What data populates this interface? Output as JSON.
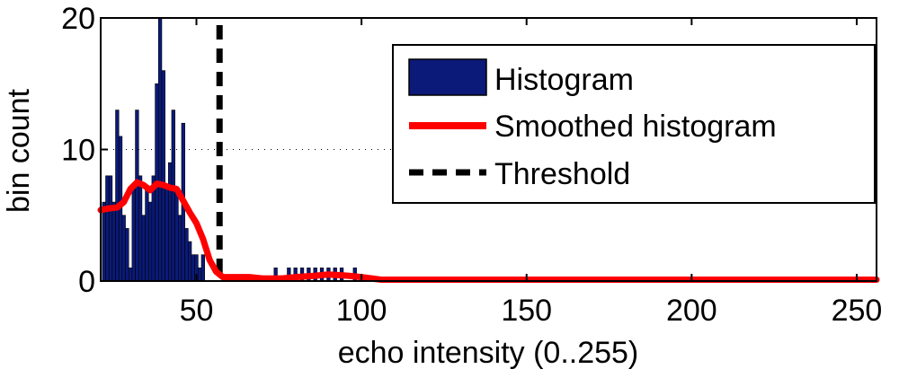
{
  "chart_data": {
    "type": "bar",
    "xlabel": "echo intensity (0..255)",
    "ylabel": "bin count",
    "xlim": [
      21,
      256
    ],
    "ylim": [
      0,
      20
    ],
    "xticks": [
      50,
      100,
      150,
      200,
      250
    ],
    "yticks": [
      0,
      10,
      20
    ],
    "grid": "y-dotted",
    "legend_position": "top-right",
    "series": [
      {
        "name": "Histogram",
        "kind": "bar",
        "color": "#0b1a78",
        "x": [
          22,
          23,
          24,
          25,
          26,
          27,
          28,
          29,
          30,
          31,
          32,
          33,
          34,
          35,
          36,
          37,
          38,
          39,
          40,
          41,
          42,
          43,
          44,
          45,
          46,
          47,
          48,
          49,
          50,
          51,
          52,
          53,
          54,
          55,
          66,
          68,
          74,
          78,
          80,
          82,
          84,
          86,
          88,
          90,
          92,
          94,
          98
        ],
        "values": [
          6,
          8,
          8,
          6,
          13,
          11,
          5,
          4,
          1,
          7,
          13,
          8,
          5,
          7,
          6,
          8,
          15,
          20,
          16,
          7,
          9,
          13,
          7,
          5,
          12,
          4,
          3,
          2,
          2,
          1,
          2,
          0,
          0,
          0,
          0,
          0,
          1,
          1,
          1,
          1,
          1,
          1,
          1,
          1,
          1,
          1,
          1
        ]
      },
      {
        "name": "Smoothed histogram",
        "kind": "line",
        "color": "#ff0000",
        "x": [
          21,
          23,
          26,
          28,
          30,
          32,
          34,
          36,
          38,
          40,
          42,
          44,
          46,
          48,
          50,
          52,
          54,
          56,
          58,
          62,
          66,
          70,
          76,
          80,
          86,
          90,
          96,
          100,
          106,
          110,
          120,
          150,
          200,
          256
        ],
        "values": [
          5.4,
          5.5,
          5.6,
          6.0,
          7.0,
          7.5,
          7.3,
          6.9,
          7.4,
          7.3,
          7.1,
          7.0,
          6.1,
          5.2,
          4.4,
          3.2,
          1.6,
          0.7,
          0.3,
          0.3,
          0.3,
          0.2,
          0.2,
          0.3,
          0.4,
          0.5,
          0.4,
          0.3,
          0.1,
          0.1,
          0.1,
          0.1,
          0.1,
          0.1
        ]
      },
      {
        "name": "Threshold",
        "kind": "vline",
        "color": "#000000",
        "x": 57
      }
    ]
  }
}
